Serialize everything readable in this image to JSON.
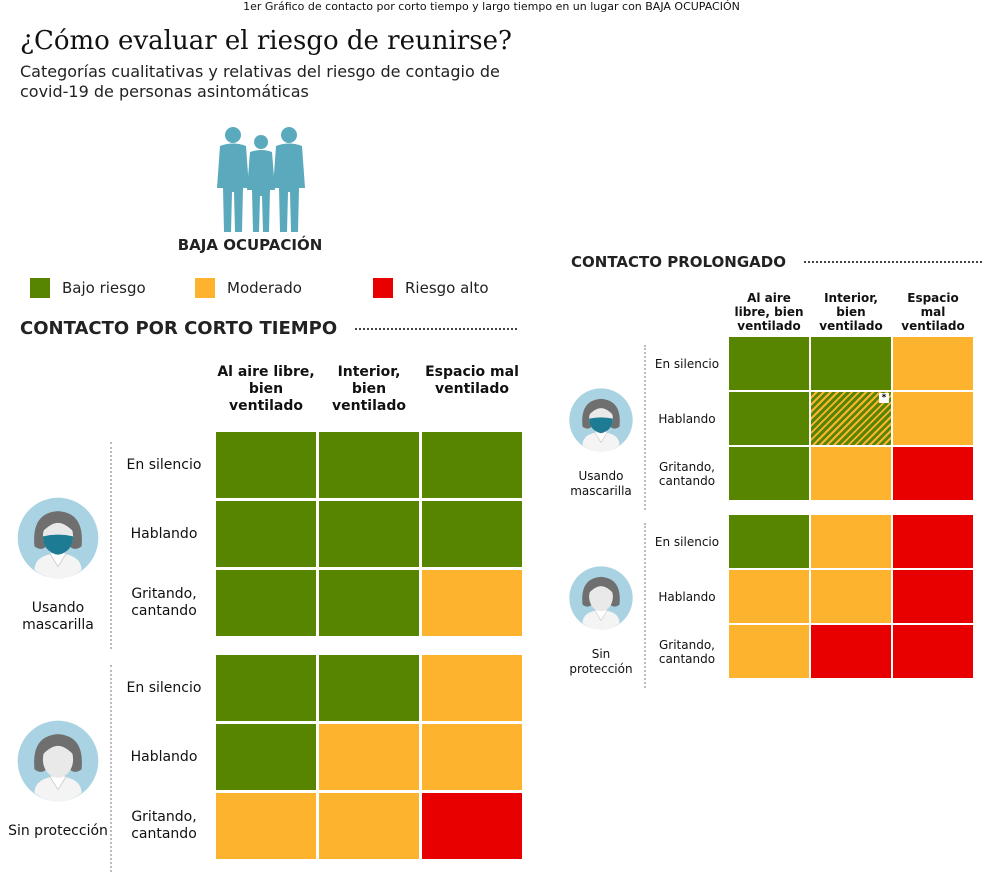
{
  "top_caption": "1er Gráfico de contacto por corto tiempo y largo tiempo en un lugar con BAJA OCUPACIÓN",
  "title": "¿Cómo evaluar el riesgo de reunirse?",
  "subtitle": "Categorías cualitativas y relativas del riesgo de contagio de covid-19 de personas asintomáticas",
  "occupancy": "BAJA OCUPACIÓN",
  "legend": [
    {
      "label": "Bajo riesgo",
      "color": "#578500"
    },
    {
      "label": "Moderado",
      "color": "#fdb32d"
    },
    {
      "label": "Riesgo alto",
      "color": "#e80000"
    }
  ],
  "short_contact": {
    "title": "CONTACTO POR CORTO TIEMPO",
    "columns": [
      "Al aire libre, bien ventilado",
      "Interior, bien ventilado",
      "Espacio mal ventilado"
    ],
    "groups": [
      {
        "label": "Usando mascarilla",
        "rows": [
          {
            "label": "En silencio",
            "levels": [
              "low",
              "low",
              "low"
            ]
          },
          {
            "label": "Hablando",
            "levels": [
              "low",
              "low",
              "low"
            ]
          },
          {
            "label": "Gritando, cantando",
            "levels": [
              "low",
              "low",
              "moderate"
            ]
          }
        ]
      },
      {
        "label": "Sin protección",
        "rows": [
          {
            "label": "En silencio",
            "levels": [
              "low",
              "low",
              "moderate"
            ]
          },
          {
            "label": "Hablando",
            "levels": [
              "low",
              "moderate",
              "moderate"
            ]
          },
          {
            "label": "Gritando, cantando",
            "levels": [
              "moderate",
              "moderate",
              "high"
            ]
          }
        ]
      }
    ]
  },
  "long_contact": {
    "title": "CONTACTO PROLONGADO",
    "columns": [
      "Al aire libre, bien ventilado",
      "Interior, bien ventilado",
      "Espacio mal ventilado"
    ],
    "groups": [
      {
        "label": "Usando mascarilla",
        "rows": [
          {
            "label": "En silencio",
            "levels": [
              "low",
              "low",
              "moderate"
            ]
          },
          {
            "label": "Hablando",
            "levels": [
              "low",
              "low-moderate",
              "moderate"
            ]
          },
          {
            "label": "Gritando, cantando",
            "levels": [
              "low",
              "moderate",
              "high"
            ]
          }
        ]
      },
      {
        "label": "Sin protección",
        "rows": [
          {
            "label": "En silencio",
            "levels": [
              "low",
              "moderate",
              "high"
            ]
          },
          {
            "label": "Hablando",
            "levels": [
              "moderate",
              "moderate",
              "high"
            ]
          },
          {
            "label": "Gritando, cantando",
            "levels": [
              "moderate",
              "high",
              "high"
            ]
          }
        ]
      }
    ]
  },
  "footnote_marker": "*",
  "colors": {
    "low": "#578500",
    "moderate": "#fdb32d",
    "high": "#e80000",
    "icon": "#5aa9bd",
    "avatar_bg": "#a9d2e2",
    "mask": "#1d7c94"
  },
  "icons": {
    "people": "three-people-icon",
    "masked": "masked-person-icon",
    "unmasked": "unmasked-person-icon"
  }
}
